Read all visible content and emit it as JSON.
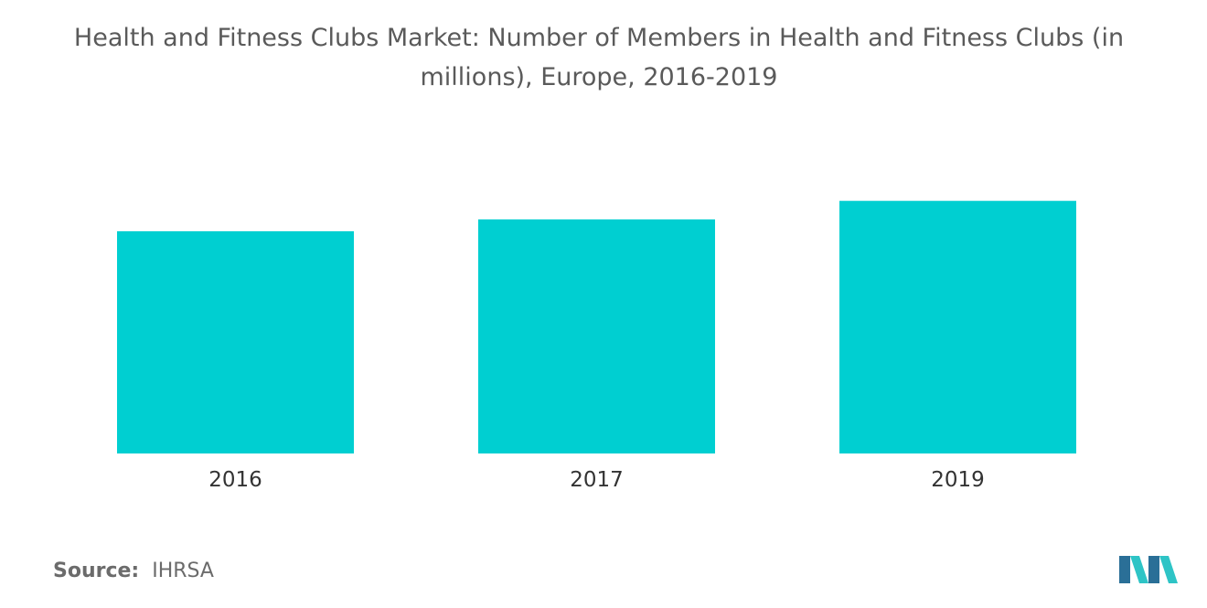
{
  "chart_data": {
    "type": "bar",
    "title": "Health and Fitness Clubs Market: Number of Members in Health and Fitness Clubs (in millions), Europe, 2016-2019",
    "categories": [
      "2016",
      "2017",
      "2019"
    ],
    "values": [
      56.4,
      59.4,
      64.1
    ],
    "xlabel": "",
    "ylabel": "",
    "ylim": [
      0,
      71
    ],
    "grid": false,
    "legend": "none"
  },
  "colors": {
    "bar": "#00cfd1",
    "logo_dark": "#2a6f97",
    "logo_light": "#2ec4c6"
  },
  "source": {
    "label": "Source:",
    "value": "IHRSA"
  },
  "logo": {
    "icon": "mordor-intelligence-logo-icon"
  }
}
